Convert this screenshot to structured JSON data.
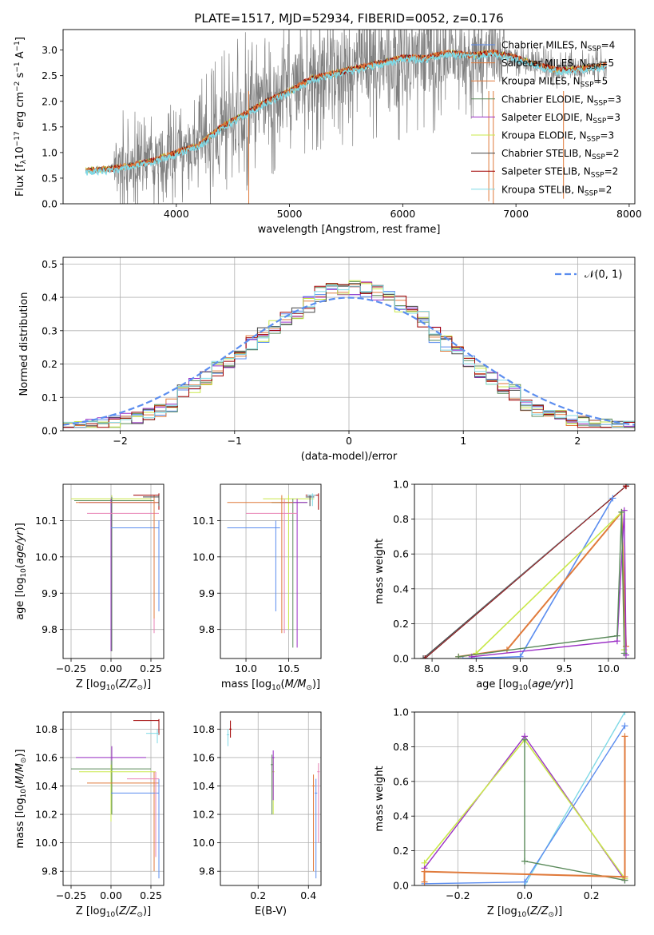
{
  "figure": {
    "title": "PLATE=1517, MJD=52934, FIBERID=0052, z=0.176"
  },
  "colors": {
    "gray": "#808080",
    "blue": "#5b8def",
    "orange": "#e07a3b",
    "green": "#5a8a5a",
    "purple": "#9b30c6",
    "yellowgreen": "#c9e84a",
    "darkgray": "#444444",
    "darkred": "#a00000",
    "cyan": "#7fd9e6",
    "pink": "#e882b4"
  },
  "chart_data": [
    {
      "type": "line",
      "id": "spectrum",
      "xlabel": "wavelength [Angstrom, rest frame]",
      "ylabel": "Flux [f_λ 10^-17 erg cm^-2 s^-1 A^-1]",
      "xlim": [
        3000,
        8050
      ],
      "ylim": [
        0,
        3.4
      ],
      "xticks": [
        4000,
        5000,
        6000,
        7000,
        8000
      ],
      "yticks": [
        0.0,
        0.5,
        1.0,
        1.5,
        2.0,
        2.5,
        3.0
      ],
      "grid": false,
      "legend_position": "top-right",
      "legend": [
        {
          "label": "Chabrier MILES, N",
          "sub": "SSP",
          "suffix": "=4",
          "color": "#5b8def"
        },
        {
          "label": "Salpeter MILES, N",
          "sub": "SSP",
          "suffix": "=5",
          "color": "#e07a3b"
        },
        {
          "label": "Kroupa MILES, N",
          "sub": "SSP",
          "suffix": "=5",
          "color": "#e07a3b"
        },
        {
          "label": "Chabrier ELODIE, N",
          "sub": "SSP",
          "suffix": "=3",
          "color": "#5a8a5a"
        },
        {
          "label": "Salpeter ELODIE, N",
          "sub": "SSP",
          "suffix": "=3",
          "color": "#9b30c6"
        },
        {
          "label": "Kroupa ELODIE, N",
          "sub": "SSP",
          "suffix": "=3",
          "color": "#c9e84a"
        },
        {
          "label": "Chabrier STELIB, N",
          "sub": "SSP",
          "suffix": "=2",
          "color": "#444444"
        },
        {
          "label": "Salpeter STELIB, N",
          "sub": "SSP",
          "suffix": "=2",
          "color": "#a00000"
        },
        {
          "label": "Kroupa STELIB, N",
          "sub": "SSP",
          "suffix": "=2",
          "color": "#7fd9e6"
        }
      ],
      "continuum": {
        "x": [
          3200,
          3400,
          3600,
          3800,
          4000,
          4200,
          4400,
          4600,
          4800,
          5000,
          5200,
          5400,
          5600,
          5800,
          6000,
          6200,
          6400,
          6600,
          6800,
          7000,
          7200,
          7400,
          7600,
          7800
        ],
        "y": [
          0.65,
          0.68,
          0.75,
          0.85,
          1.0,
          1.15,
          1.5,
          1.75,
          2.0,
          2.2,
          2.45,
          2.55,
          2.65,
          2.75,
          2.85,
          2.85,
          2.95,
          2.9,
          2.95,
          2.85,
          2.7,
          2.6,
          2.65,
          2.7
        ]
      }
    },
    {
      "type": "histogram",
      "id": "residuals",
      "xlabel": "(data-model)/error",
      "ylabel": "Normed distribution",
      "xlim": [
        -2.5,
        2.5
      ],
      "ylim": [
        0,
        0.52
      ],
      "xticks": [
        -2,
        -1,
        0,
        1,
        2
      ],
      "yticks": [
        0.0,
        0.1,
        0.2,
        0.3,
        0.4,
        0.5
      ],
      "grid": true,
      "legend_position": "top-right",
      "legend": [
        {
          "label": "𝒩(0, 1)",
          "color": "#5b8def",
          "style": "dashed"
        }
      ],
      "bin_width": 0.1,
      "gaussian": {
        "mean": 0,
        "sigma": 1
      }
    },
    {
      "type": "scatter",
      "id": "age-vs-Z",
      "xlabel": "Z [log10(Z/Z⊙)]",
      "ylabel": "age  [log10(age/yr)]",
      "xlim": [
        -0.3,
        0.33
      ],
      "ylim": [
        9.72,
        10.2
      ],
      "xticks": [
        -0.25,
        0.0,
        0.25
      ],
      "yticks": [
        9.8,
        9.9,
        10.0,
        10.1
      ],
      "grid": true
    },
    {
      "type": "scatter",
      "id": "age-vs-mass",
      "xlabel": "mass [log10(M/M⊙)]",
      "ylabel": "",
      "xlim": [
        9.7,
        10.88
      ],
      "ylim": [
        9.72,
        10.2
      ],
      "xticks": [
        10.0,
        10.5
      ],
      "yticks": [
        9.8,
        9.9,
        10.0,
        10.1
      ],
      "grid": true
    },
    {
      "type": "line",
      "id": "mw-vs-age",
      "xlabel": "age  [log10(age/yr)]",
      "ylabel": "mass weight",
      "xlim": [
        7.8,
        10.3
      ],
      "ylim": [
        0,
        1.0
      ],
      "xticks": [
        8.0,
        8.5,
        9.0,
        9.5,
        10.0
      ],
      "yticks": [
        0.0,
        0.2,
        0.4,
        0.6,
        0.8,
        1.0
      ],
      "grid": true
    },
    {
      "type": "scatter",
      "id": "mass-vs-Z",
      "xlabel": "Z [log10(Z/Z⊙)]",
      "ylabel": "mass [log10(M/M⊙)]",
      "xlim": [
        -0.3,
        0.33
      ],
      "ylim": [
        9.7,
        10.92
      ],
      "xticks": [
        -0.25,
        0.0,
        0.25
      ],
      "yticks": [
        9.8,
        10.0,
        10.2,
        10.4,
        10.6,
        10.8
      ],
      "grid": true
    },
    {
      "type": "scatter",
      "id": "mass-vs-ebv",
      "xlabel": "E(B-V)",
      "ylabel": "",
      "xlim": [
        0.05,
        0.45
      ],
      "ylim": [
        9.7,
        10.92
      ],
      "xticks": [
        0.2,
        0.4
      ],
      "yticks": [
        9.8,
        10.0,
        10.2,
        10.4,
        10.6,
        10.8
      ],
      "grid": true
    },
    {
      "type": "line",
      "id": "mw-vs-Z",
      "xlabel": "Z [log10(Z/Z⊙)]",
      "ylabel": "mass weight",
      "xlim": [
        -0.33,
        0.33
      ],
      "ylim": [
        0,
        1.0
      ],
      "xticks": [
        -0.2,
        0.0,
        0.2
      ],
      "yticks": [
        0.0,
        0.2,
        0.4,
        0.6,
        0.8,
        1.0
      ],
      "grid": true
    }
  ]
}
